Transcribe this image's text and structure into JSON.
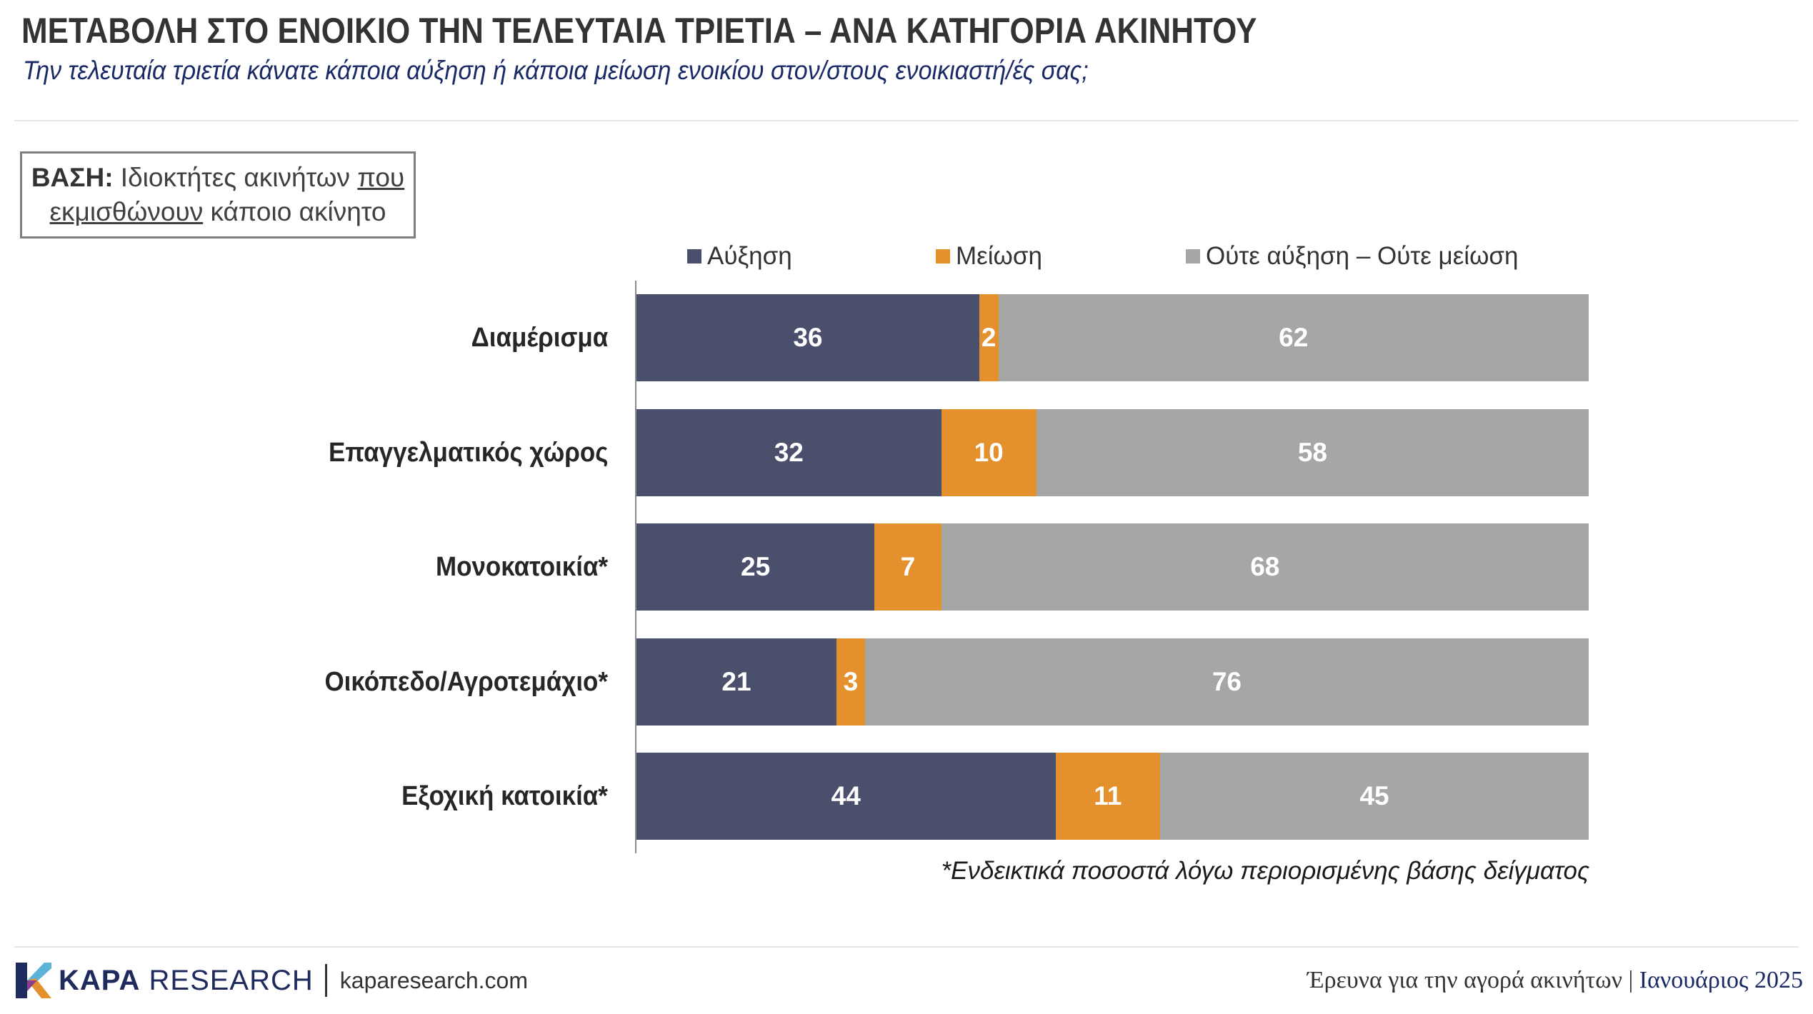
{
  "header": {
    "title": "ΜΕΤΑΒΟΛΗ ΣΤΟ ΕΝΟΙΚΙΟ ΤΗΝ ΤΕΛΕΥΤΑΙΑ ΤΡΙΕΤΙΑ – ΑΝΑ ΚΑΤΗΓΟΡΙΑ ΑΚΙΝΗΤΟΥ",
    "subtitle": "Την τελευταία τριετία κάνατε κάποια αύξηση ή κάποια μείωση ενοικίου στον/στους ενοικιαστή/ές σας;"
  },
  "base": {
    "label": "ΒΑΣΗ:",
    "text_part1": "Ιδιοκτήτες ακινήτων",
    "text_underlined1": "που",
    "text_underlined2": "εκμισθώνουν",
    "text_part2": "κάποιο ακίνητο"
  },
  "chart_data": {
    "type": "bar",
    "orientation": "horizontal",
    "stacked": true,
    "categories": [
      "Διαμέρισμα",
      "Επαγγελματικός χώρος",
      "Μονοκατοικία*",
      "Οικόπεδο/Αγροτεμάχιο*",
      "Εξοχική κατοικία*"
    ],
    "series": [
      {
        "name": "Αύξηση",
        "color": "#4a4f6b",
        "values": [
          36,
          32,
          25,
          21,
          44
        ]
      },
      {
        "name": "Μείωση",
        "color": "#e3902d",
        "values": [
          2,
          10,
          7,
          3,
          11
        ]
      },
      {
        "name": "Ούτε αύξηση – Ούτε μείωση",
        "color": "#a6a6a6",
        "values": [
          62,
          58,
          68,
          76,
          45
        ]
      }
    ],
    "xlim": [
      0,
      100
    ],
    "legend_position": "top",
    "grid": false
  },
  "note": "*Ενδεικτικά ποσοστά λόγω περιορισμένης βάσης δείγματος",
  "footer": {
    "brand_bold": "KAPA",
    "brand_rest": "RESEARCH",
    "url": "kaparesearch.com",
    "survey": "Έρευνα για την αγορά ακινήτων",
    "separator": "|",
    "date": "Ιανουάριος 2025"
  }
}
